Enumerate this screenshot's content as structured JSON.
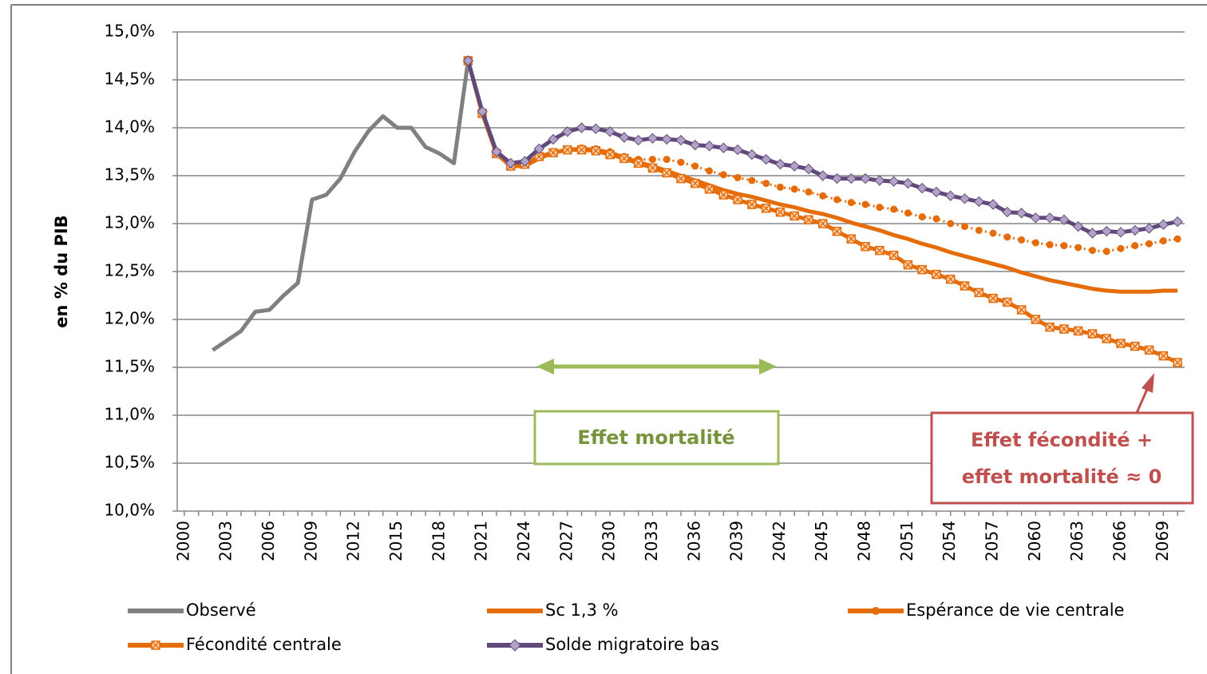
{
  "chart_data": {
    "type": "line",
    "y_label": "en % du PIB",
    "xlim": [
      1999.5,
      2070.5
    ],
    "ylim": [
      10,
      15
    ],
    "yticks": [
      {
        "value": 10,
        "label": "10,0%"
      },
      {
        "value": 10.5,
        "label": "10,5%"
      },
      {
        "value": 11,
        "label": "11,0%"
      },
      {
        "value": 11.5,
        "label": "11,5%"
      },
      {
        "value": 12,
        "label": "12,0%"
      },
      {
        "value": 12.5,
        "label": "12,5%"
      },
      {
        "value": 13,
        "label": "13,0%"
      },
      {
        "value": 13.5,
        "label": "13,5%"
      },
      {
        "value": 14,
        "label": "14,0%"
      },
      {
        "value": 14.5,
        "label": "14,5%"
      },
      {
        "value": 15,
        "label": "15,0%"
      }
    ],
    "xticks": [
      2000,
      2003,
      2006,
      2009,
      2012,
      2015,
      2018,
      2021,
      2024,
      2027,
      2030,
      2033,
      2036,
      2039,
      2042,
      2045,
      2048,
      2051,
      2054,
      2057,
      2060,
      2063,
      2066,
      2069
    ],
    "grid": true,
    "x": [
      2000,
      2001,
      2002,
      2003,
      2004,
      2005,
      2006,
      2007,
      2008,
      2009,
      2010,
      2011,
      2012,
      2013,
      2014,
      2015,
      2016,
      2017,
      2018,
      2019,
      2020,
      2021,
      2022,
      2023,
      2024,
      2025,
      2026,
      2027,
      2028,
      2029,
      2030,
      2031,
      2032,
      2033,
      2034,
      2035,
      2036,
      2037,
      2038,
      2039,
      2040,
      2041,
      2042,
      2043,
      2044,
      2045,
      2046,
      2047,
      2048,
      2049,
      2050,
      2051,
      2052,
      2053,
      2054,
      2055,
      2056,
      2057,
      2058,
      2059,
      2060,
      2061,
      2062,
      2063,
      2064,
      2065,
      2066,
      2067,
      2068,
      2069,
      2070
    ],
    "series": [
      {
        "name": "Observé",
        "color": "#808080",
        "marker": "none",
        "dash": "solid",
        "values": [
          null,
          null,
          11.68,
          11.78,
          11.88,
          12.08,
          12.1,
          12.25,
          12.38,
          13.25,
          13.3,
          13.47,
          13.75,
          13.97,
          14.12,
          14.0,
          14.0,
          13.8,
          13.73,
          13.63,
          14.7,
          null,
          null,
          null,
          null,
          null,
          null,
          null,
          null,
          null,
          null,
          null,
          null,
          null,
          null,
          null,
          null,
          null,
          null,
          null,
          null,
          null,
          null,
          null,
          null,
          null,
          null,
          null,
          null,
          null,
          null,
          null,
          null,
          null,
          null,
          null,
          null,
          null,
          null,
          null,
          null,
          null,
          null,
          null,
          null,
          null,
          null,
          null,
          null,
          null,
          null
        ]
      },
      {
        "name": "Sc 1,3 %",
        "color": "#e46c0a",
        "marker": "none",
        "dash": "solid",
        "values": [
          null,
          null,
          null,
          null,
          null,
          null,
          null,
          null,
          null,
          null,
          null,
          null,
          null,
          null,
          null,
          null,
          null,
          null,
          null,
          null,
          14.7,
          14.15,
          13.73,
          13.6,
          13.6,
          13.68,
          13.74,
          13.77,
          13.78,
          13.77,
          13.74,
          13.69,
          13.64,
          13.6,
          13.55,
          13.5,
          13.45,
          13.4,
          13.35,
          13.31,
          13.28,
          13.24,
          13.2,
          13.17,
          13.13,
          13.1,
          13.06,
          13.01,
          12.97,
          12.93,
          12.88,
          12.84,
          12.79,
          12.75,
          12.7,
          12.66,
          12.62,
          12.58,
          12.54,
          12.49,
          12.45,
          12.41,
          12.38,
          12.35,
          12.32,
          12.3,
          12.29,
          12.29,
          12.29,
          12.3,
          12.3
        ]
      },
      {
        "name": "Espérance de vie centrale",
        "color": "#e46c0a",
        "marker": "circle",
        "dash": "dotted",
        "values": [
          null,
          null,
          null,
          null,
          null,
          null,
          null,
          null,
          null,
          null,
          null,
          null,
          null,
          null,
          null,
          null,
          null,
          null,
          null,
          null,
          14.7,
          14.15,
          13.73,
          13.6,
          13.62,
          13.7,
          13.75,
          13.78,
          13.79,
          13.78,
          13.75,
          13.7,
          13.67,
          13.67,
          13.67,
          13.64,
          13.6,
          13.55,
          13.51,
          13.48,
          13.45,
          13.42,
          13.38,
          13.36,
          13.33,
          13.29,
          13.25,
          13.22,
          13.2,
          13.17,
          13.15,
          13.11,
          13.07,
          13.05,
          13.0,
          12.97,
          12.93,
          12.9,
          12.86,
          12.83,
          12.8,
          12.78,
          12.77,
          12.75,
          12.72,
          12.71,
          12.74,
          12.77,
          12.79,
          12.82,
          12.84
        ]
      },
      {
        "name": "Fécondité centrale",
        "color": "#e46c0a",
        "marker": "cross-square",
        "dash": "solid",
        "values": [
          null,
          null,
          null,
          null,
          null,
          null,
          null,
          null,
          null,
          null,
          null,
          null,
          null,
          null,
          null,
          null,
          null,
          null,
          null,
          null,
          14.7,
          14.15,
          13.73,
          13.6,
          13.62,
          13.7,
          13.74,
          13.77,
          13.77,
          13.76,
          13.72,
          13.68,
          13.63,
          13.58,
          13.53,
          13.47,
          13.42,
          13.36,
          13.3,
          13.25,
          13.2,
          13.16,
          13.12,
          13.08,
          13.04,
          13.0,
          12.92,
          12.84,
          12.76,
          12.72,
          12.67,
          12.57,
          12.52,
          12.47,
          12.42,
          12.35,
          12.28,
          12.22,
          12.18,
          12.1,
          12.0,
          11.92,
          11.9,
          11.88,
          11.85,
          11.8,
          11.75,
          11.72,
          11.68,
          11.62,
          11.55
        ]
      },
      {
        "name": "Solde migratoire bas",
        "color": "#604a7b",
        "marker": "diamond",
        "dash": "solid",
        "values": [
          null,
          null,
          null,
          null,
          null,
          null,
          null,
          null,
          null,
          null,
          null,
          null,
          null,
          null,
          null,
          null,
          null,
          null,
          null,
          null,
          14.7,
          14.17,
          13.75,
          13.63,
          13.65,
          13.78,
          13.88,
          13.96,
          14.0,
          13.99,
          13.96,
          13.9,
          13.87,
          13.89,
          13.88,
          13.87,
          13.82,
          13.81,
          13.79,
          13.77,
          13.72,
          13.67,
          13.62,
          13.6,
          13.57,
          13.5,
          13.47,
          13.47,
          13.47,
          13.45,
          13.44,
          13.42,
          13.37,
          13.33,
          13.29,
          13.26,
          13.23,
          13.2,
          13.12,
          13.11,
          13.06,
          13.06,
          13.04,
          12.97,
          12.9,
          12.92,
          12.91,
          12.93,
          12.95,
          12.99,
          13.02
        ]
      }
    ],
    "annotations": [
      {
        "text": [
          "Effet mortalité"
        ],
        "color": "#77933c"
      },
      {
        "text": [
          "Effet fécondité +",
          "effet mortalité ≈ 0"
        ],
        "color": "#c0504d"
      }
    ]
  }
}
